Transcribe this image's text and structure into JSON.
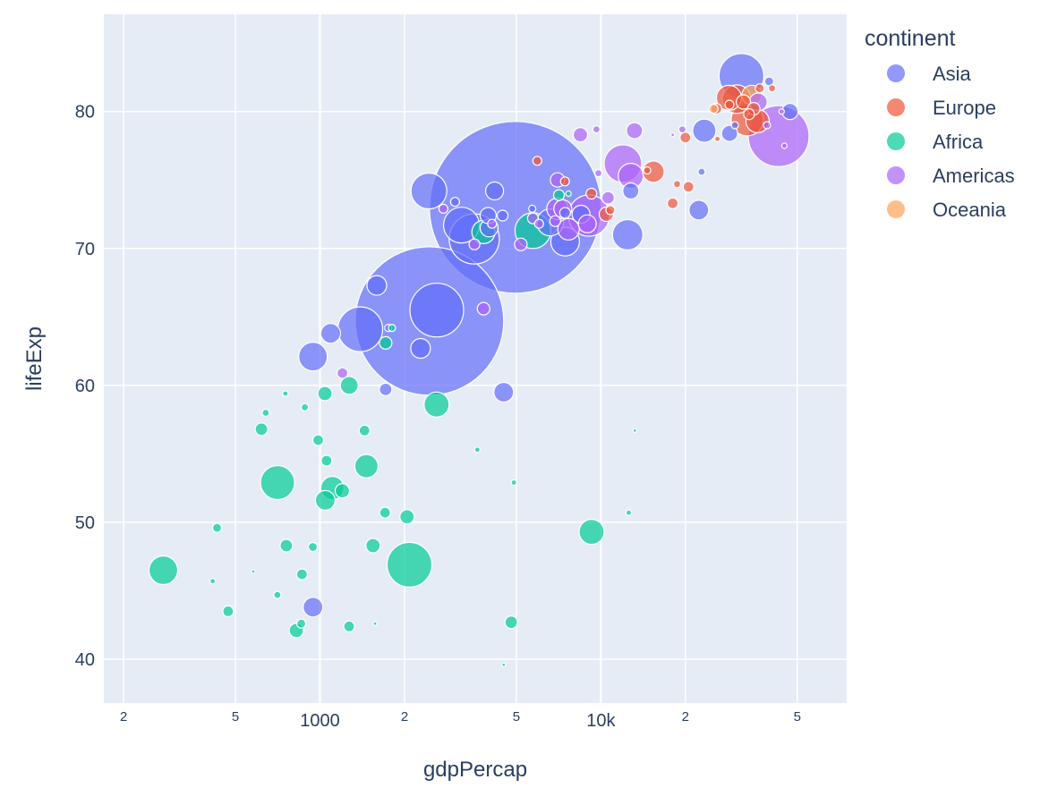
{
  "chart_data": {
    "type": "scatter",
    "variant": "bubble",
    "x_scale": "log",
    "xlabel": "gdpPercap",
    "ylabel": "lifeExp",
    "legend_title": "continent",
    "legend_position": "right",
    "grid": true,
    "xlim": [
      170,
      75000
    ],
    "ylim": [
      36.8,
      87.1
    ],
    "x_ticks": [
      {
        "value": 200,
        "label": "2",
        "major": false
      },
      {
        "value": 500,
        "label": "5",
        "major": false
      },
      {
        "value": 1000,
        "label": "1000",
        "major": true
      },
      {
        "value": 2000,
        "label": "2",
        "major": false
      },
      {
        "value": 5000,
        "label": "5",
        "major": false
      },
      {
        "value": 10000,
        "label": "10k",
        "major": true
      },
      {
        "value": 20000,
        "label": "2",
        "major": false
      },
      {
        "value": 50000,
        "label": "5",
        "major": false
      }
    ],
    "y_ticks": [
      40,
      50,
      60,
      70,
      80
    ],
    "colors": {
      "Asia": "#636efa",
      "Europe": "#ef553b",
      "Africa": "#00cc96",
      "Americas": "#ab63fa",
      "Oceania": "#ffa15a",
      "plot_bg": "#e5ecf6",
      "grid": "#ffffff"
    },
    "series": [
      {
        "name": "Asia",
        "color": "#636efa",
        "points": [
          [
            4959,
            73.0,
            96
          ],
          [
            2452,
            64.7,
            83
          ],
          [
            2605,
            65.5,
            30
          ],
          [
            31656,
            82.6,
            25
          ],
          [
            3541,
            70.7,
            28
          ],
          [
            3190,
            71.7,
            20
          ],
          [
            1391,
            64.1,
            25
          ],
          [
            2442,
            74.2,
            20
          ],
          [
            12452,
            71.0,
            17
          ],
          [
            4185,
            74.2,
            10
          ],
          [
            944,
            62.1,
            16
          ],
          [
            1593,
            67.3,
            11
          ],
          [
            4508,
            59.5,
            11
          ],
          [
            1713,
            59.7,
            7
          ],
          [
            2281,
            62.7,
            11
          ],
          [
            1091,
            63.8,
            11
          ],
          [
            4471,
            72.4,
            6
          ],
          [
            7458,
            72.6,
            6
          ],
          [
            3970,
            72.4,
            9
          ],
          [
            22316,
            72.8,
            11
          ],
          [
            23348,
            78.6,
            13
          ],
          [
            28718,
            78.4,
            9
          ],
          [
            47143,
            80.0,
            9
          ],
          [
            39724,
            82.2,
            5
          ],
          [
            22833,
            75.6,
            4
          ],
          [
            12779,
            74.2,
            9
          ],
          [
            5700,
            72.9,
            4
          ],
          [
            7458,
            70.5,
            16
          ],
          [
            3025,
            73.4,
            5
          ],
          [
            944,
            43.8,
            11
          ],
          [
            30000,
            79.0,
            4
          ],
          [
            1750,
            64.2,
            4
          ],
          [
            4000,
            71.5,
            10
          ],
          [
            8500,
            72.5,
            10
          ],
          [
            6600,
            71.9,
            15
          ]
        ]
      },
      {
        "name": "Europe",
        "color": "#ef553b",
        "points": [
          [
            15390,
            75.6,
            12
          ],
          [
            10461,
            72.5,
            8
          ],
          [
            28569,
            81.0,
            14
          ],
          [
            33203,
            79.4,
            18
          ],
          [
            30470,
            80.9,
            16
          ],
          [
            36126,
            79.3,
            13
          ],
          [
            25768,
            80.2,
            6
          ],
          [
            18009,
            73.3,
            6
          ],
          [
            20510,
            74.5,
            6
          ],
          [
            7447,
            74.9,
            5
          ],
          [
            36798,
            81.7,
            5
          ],
          [
            28692,
            80.5,
            5
          ],
          [
            33692,
            79.8,
            6
          ],
          [
            5937,
            76.4,
            5
          ],
          [
            9253,
            74.0,
            6
          ],
          [
            18678,
            74.7,
            4
          ],
          [
            14619,
            75.7,
            4
          ],
          [
            32170,
            80.7,
            8
          ],
          [
            40676,
            81.7,
            4
          ],
          [
            10808,
            72.8,
            5
          ],
          [
            20000,
            78.1,
            6
          ],
          [
            35000,
            80.2,
            7
          ],
          [
            26000,
            78.0,
            3
          ]
        ]
      },
      {
        "name": "Africa",
        "color": "#00cc96",
        "points": [
          [
            277,
            46.5,
            16
          ],
          [
            2082,
            46.9,
            25
          ],
          [
            706,
            52.9,
            19
          ],
          [
            5728,
            71.3,
            20
          ],
          [
            2601,
            58.6,
            14
          ],
          [
            1463,
            54.1,
            13
          ],
          [
            1107,
            52.5,
            13
          ],
          [
            1044,
            51.6,
            11
          ],
          [
            3821,
            71.2,
            13
          ],
          [
            9270,
            49.3,
            14
          ],
          [
            1271,
            60.0,
            10
          ],
          [
            1042,
            59.4,
            8
          ],
          [
            985,
            56.0,
            6
          ],
          [
            1545,
            48.3,
            8
          ],
          [
            1704,
            50.7,
            6
          ],
          [
            2042,
            50.4,
            8
          ],
          [
            824,
            42.1,
            8
          ],
          [
            619,
            56.8,
            7
          ],
          [
            471,
            43.5,
            6
          ],
          [
            1201,
            52.3,
            8
          ],
          [
            1441,
            56.7,
            6
          ],
          [
            759,
            48.3,
            7
          ],
          [
            943,
            48.2,
            5
          ],
          [
            863,
            46.2,
            6
          ],
          [
            1056,
            54.5,
            6
          ],
          [
            1270,
            42.4,
            6
          ],
          [
            4797,
            42.7,
            7
          ],
          [
            430,
            49.6,
            5
          ],
          [
            415,
            45.7,
            3
          ],
          [
            1713,
            63.1,
            7
          ],
          [
            7092,
            73.9,
            6
          ],
          [
            883,
            58.4,
            4
          ],
          [
            641,
            58.0,
            4
          ],
          [
            3632,
            55.3,
            3
          ],
          [
            858,
            42.6,
            5
          ],
          [
            579,
            46.4,
            2
          ],
          [
            705,
            44.7,
            4
          ],
          [
            1803,
            64.2,
            4
          ],
          [
            13206,
            56.7,
            2
          ],
          [
            12570,
            50.7,
            3
          ],
          [
            4513,
            39.6,
            2
          ],
          [
            1570,
            42.6,
            2
          ],
          [
            753,
            59.4,
            3
          ],
          [
            4900,
            52.9,
            3
          ],
          [
            7670,
            74.0,
            3
          ]
        ]
      },
      {
        "name": "Americas",
        "color": "#ab63fa",
        "points": [
          [
            42952,
            78.2,
            34
          ],
          [
            9066,
            72.4,
            23
          ],
          [
            12779,
            75.3,
            14
          ],
          [
            11977,
            76.2,
            21
          ],
          [
            7008,
            72.9,
            12
          ],
          [
            8948,
            71.8,
            10
          ],
          [
            13172,
            78.6,
            9
          ],
          [
            3822,
            65.6,
            7
          ],
          [
            5728,
            72.2,
            6
          ],
          [
            1202,
            60.9,
            6
          ],
          [
            7320,
            72.9,
            10
          ],
          [
            7670,
            71.4,
            12
          ],
          [
            6873,
            72.0,
            6
          ],
          [
            10611,
            73.7,
            7
          ],
          [
            8458,
            78.3,
            8
          ],
          [
            36319,
            80.7,
            10
          ],
          [
            5186,
            70.3,
            7
          ],
          [
            3548,
            70.3,
            6
          ],
          [
            9645,
            78.7,
            4
          ],
          [
            18009,
            78.3,
            2
          ],
          [
            7006,
            75.0,
            8
          ],
          [
            2749,
            72.9,
            5
          ],
          [
            6025,
            71.8,
            5
          ],
          [
            9800,
            75.5,
            4
          ],
          [
            45000,
            77.5,
            3
          ],
          [
            44000,
            80.0,
            3
          ],
          [
            39000,
            79.0,
            4
          ],
          [
            19500,
            78.7,
            4
          ],
          [
            4100,
            71.8,
            5
          ]
        ]
      },
      {
        "name": "Oceania",
        "color": "#ffa15a",
        "points": [
          [
            34435,
            81.2,
            11
          ],
          [
            25185,
            80.2,
            5
          ]
        ]
      }
    ]
  }
}
